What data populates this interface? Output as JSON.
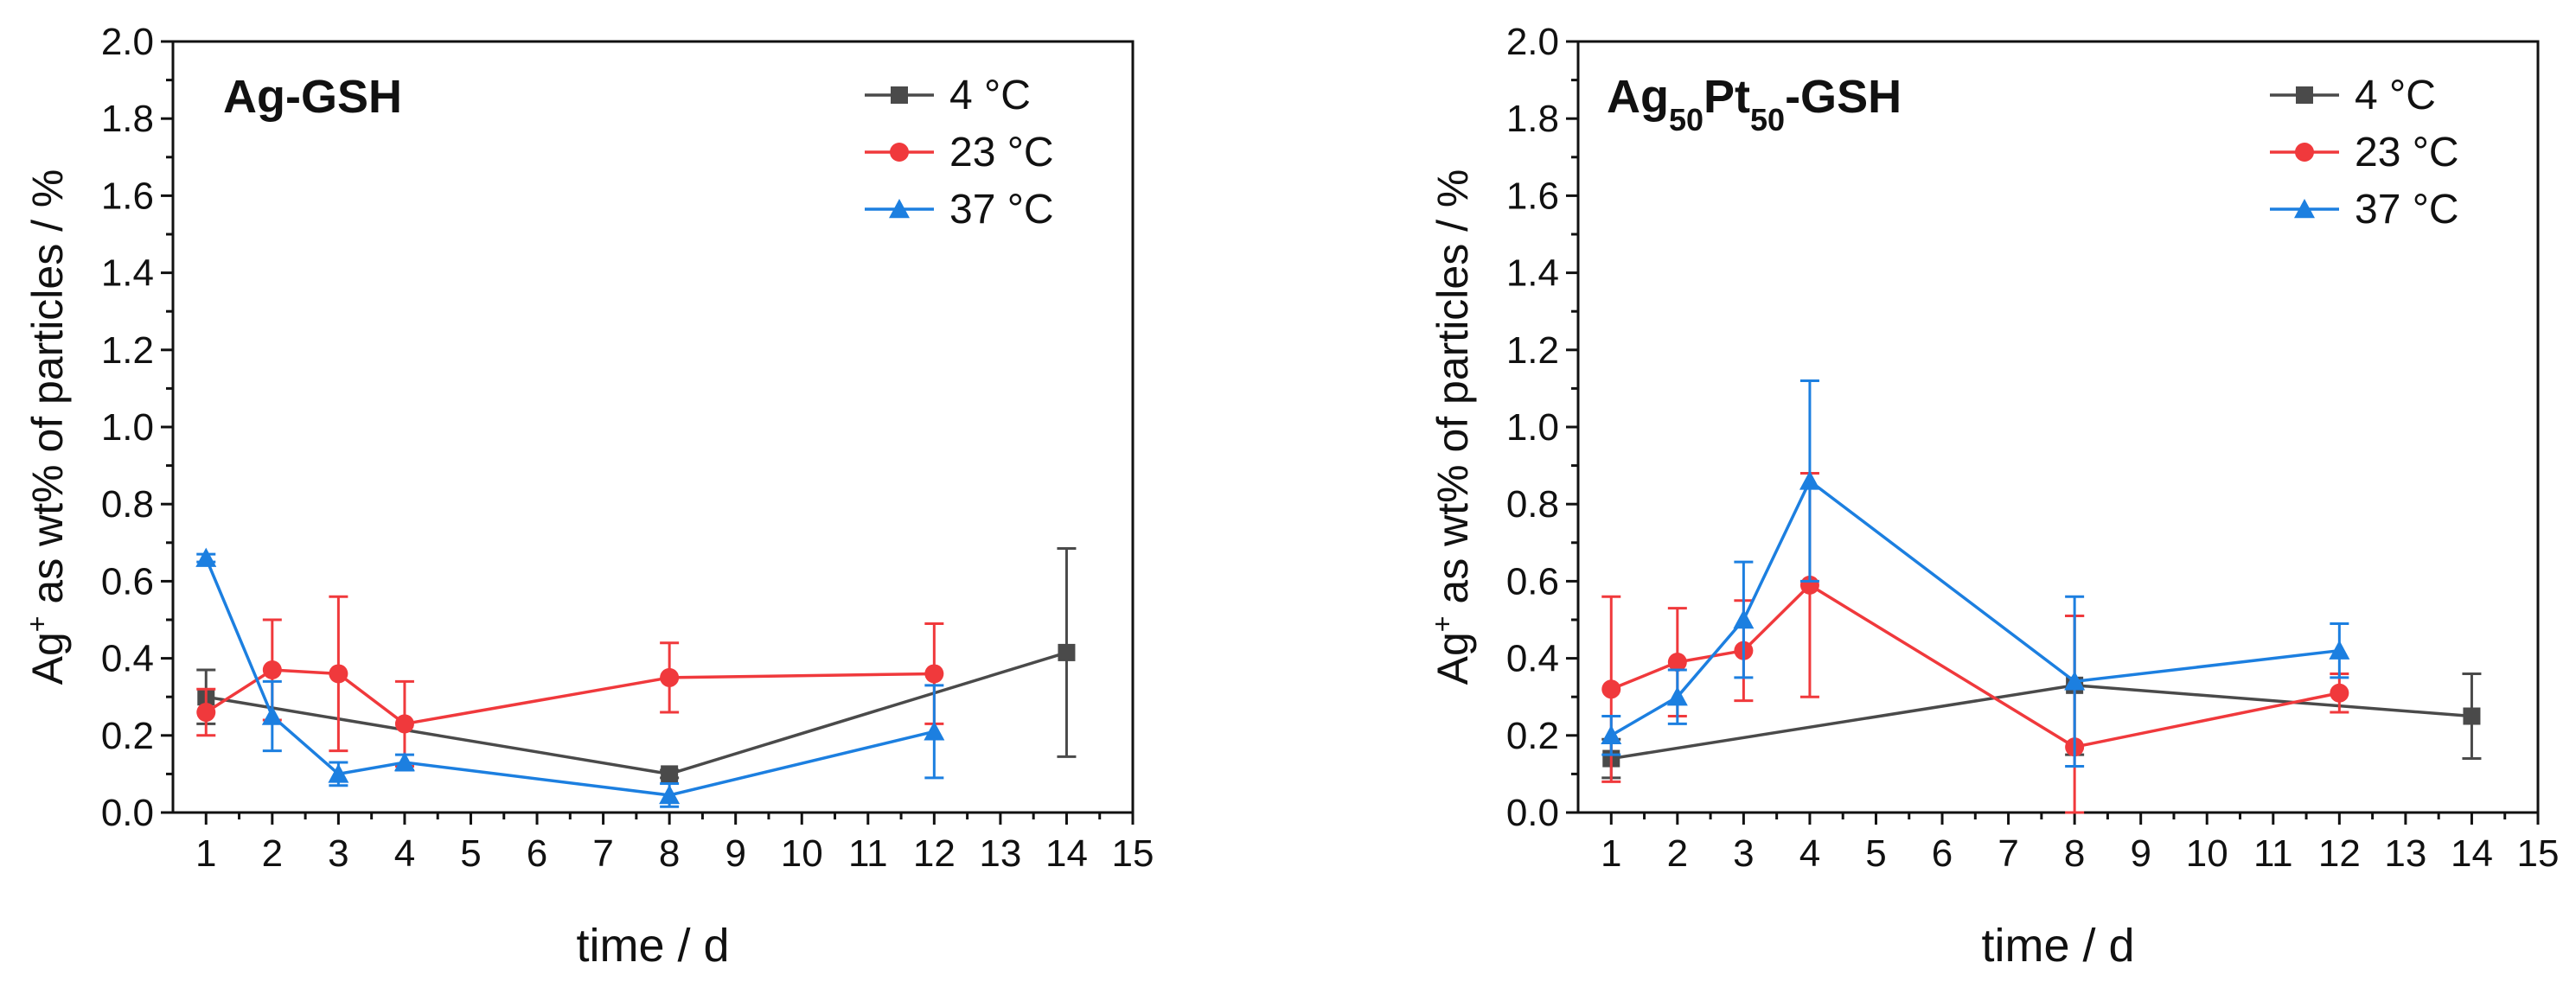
{
  "figure": {
    "panels": [
      {
        "title": {
          "main": "Ag-GSH",
          "parts": [
            {
              "text": "Ag-GSH",
              "sub": false
            }
          ]
        },
        "ylabel": {
          "main": "Ag",
          "sup": "+",
          "rest": " as wt% of particles / %"
        },
        "xlabel": "time / d"
      },
      {
        "title": {
          "main": "Ag50Pt50-GSH",
          "parts": [
            {
              "text": "Ag",
              "sub": false
            },
            {
              "text": "50",
              "sub": true
            },
            {
              "text": "Pt",
              "sub": false
            },
            {
              "text": "50",
              "sub": true
            },
            {
              "text": "-GSH",
              "sub": false
            }
          ]
        },
        "ylabel": {
          "main": "Ag",
          "sup": "+",
          "rest": " as wt% of particles / %"
        },
        "xlabel": "time / d"
      }
    ]
  },
  "chart_data": [
    {
      "type": "line",
      "title": "Ag-GSH",
      "xlabel": "time / d",
      "ylabel": "Ag+ as wt% of particles / %",
      "xlim": [
        0.5,
        15
      ],
      "ylim": [
        0,
        2.0
      ],
      "xticks": [
        1,
        2,
        3,
        4,
        5,
        6,
        7,
        8,
        9,
        10,
        11,
        12,
        13,
        14,
        15
      ],
      "yticks": [
        "0.0",
        "0.2",
        "0.4",
        "0.6",
        "0.8",
        "1.0",
        "1.2",
        "1.4",
        "1.6",
        "1.8",
        "2.0"
      ],
      "grid": false,
      "legend": "top-right",
      "series": [
        {
          "name": "4 °C",
          "color": "#4a4a4a",
          "marker": "square",
          "x": [
            1,
            8,
            14
          ],
          "y": [
            0.3,
            0.1,
            0.415
          ],
          "err": [
            0.07,
            0.01,
            0.27
          ]
        },
        {
          "name": "23 °C",
          "color": "#f0393c",
          "marker": "circle",
          "x": [
            1,
            2,
            3,
            4,
            8,
            12
          ],
          "y": [
            0.26,
            0.37,
            0.36,
            0.23,
            0.35,
            0.36
          ],
          "err": [
            0.06,
            0.13,
            0.2,
            0.11,
            0.09,
            0.13
          ]
        },
        {
          "name": "37 °C",
          "color": "#1c7fe0",
          "marker": "triangle",
          "x": [
            1,
            2,
            3,
            4,
            8,
            12
          ],
          "y": [
            0.66,
            0.25,
            0.1,
            0.13,
            0.045,
            0.21
          ],
          "err": [
            0.01,
            0.09,
            0.03,
            0.02,
            0.03,
            0.12
          ]
        }
      ]
    },
    {
      "type": "line",
      "title": "Ag50Pt50-GSH",
      "xlabel": "time / d",
      "ylabel": "Ag+ as wt% of particles / %",
      "xlim": [
        0.5,
        15
      ],
      "ylim": [
        0,
        2.0
      ],
      "xticks": [
        1,
        2,
        3,
        4,
        5,
        6,
        7,
        8,
        9,
        10,
        11,
        12,
        13,
        14,
        15
      ],
      "yticks": [
        "0.0",
        "0.2",
        "0.4",
        "0.6",
        "0.8",
        "1.0",
        "1.2",
        "1.4",
        "1.6",
        "1.8",
        "2.0"
      ],
      "grid": false,
      "legend": "top-right",
      "series": [
        {
          "name": "4 °C",
          "color": "#4a4a4a",
          "marker": "square",
          "x": [
            1,
            8,
            14
          ],
          "y": [
            0.14,
            0.33,
            0.25
          ],
          "err": [
            0.05,
            0.18,
            0.11
          ]
        },
        {
          "name": "23 °C",
          "color": "#f0393c",
          "marker": "circle",
          "x": [
            1,
            2,
            3,
            4,
            8,
            12
          ],
          "y": [
            0.32,
            0.39,
            0.42,
            0.59,
            0.17,
            0.31
          ],
          "err": [
            0.24,
            0.14,
            0.13,
            0.29,
            0.34,
            0.05
          ]
        },
        {
          "name": "37 °C",
          "color": "#1c7fe0",
          "marker": "triangle",
          "x": [
            1,
            2,
            3,
            4,
            8,
            12
          ],
          "y": [
            0.2,
            0.3,
            0.5,
            0.86,
            0.34,
            0.42
          ],
          "err": [
            0.05,
            0.07,
            0.15,
            0.26,
            0.22,
            0.07
          ]
        }
      ]
    }
  ]
}
